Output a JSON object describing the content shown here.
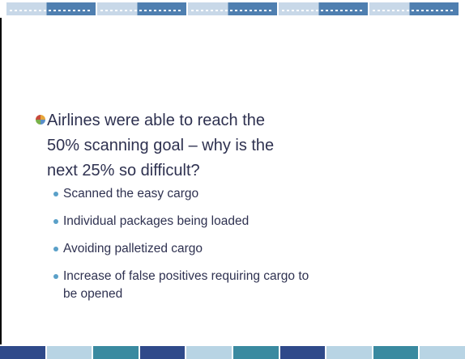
{
  "slide": {
    "bullet": "Airlines were able to reach the 50% scanning goal – why is the next 25% so difficult?",
    "subbullets": [
      "Scanned the easy cargo",
      "Individual packages being loaded",
      "Avoiding palletized cargo",
      "Increase of false positives requiring cargo to be opened"
    ]
  }
}
